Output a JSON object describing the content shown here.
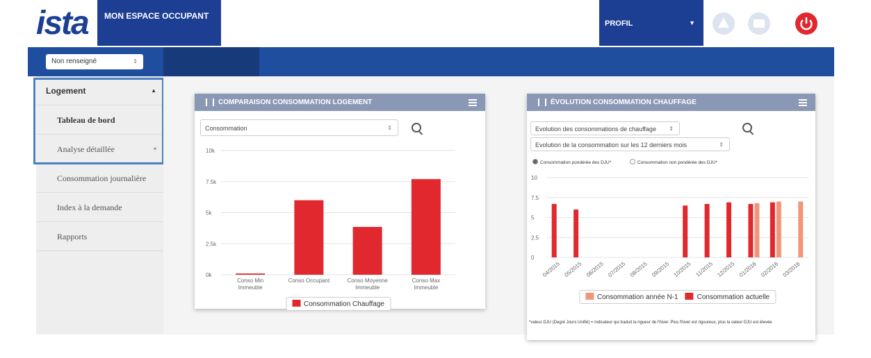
{
  "header": {
    "logo": "ista",
    "title": "MON ESPACE OCCUPANT",
    "profile": "PROFIL"
  },
  "selector": "Non renseigné",
  "sidebar": {
    "section": "Logement",
    "items": [
      "Tableau de bord",
      "Analyse détaillée",
      "Consommation journalière",
      "Index à la demande",
      "Rapports"
    ]
  },
  "chart_data": [
    {
      "type": "bar",
      "title": "COMPARAISON CONSOMMATION LOGEMENT",
      "controls": {
        "selects": [
          "Consommation"
        ]
      },
      "categories": [
        "Conso Min Immeuble",
        "Conso Occupant",
        "Conso Moyenne Immeuble",
        "Conso Max Immeuble"
      ],
      "series": [
        {
          "name": "Consommation Chauffage",
          "color": "#e0282e",
          "values": [
            100,
            6000,
            3850,
            7700
          ]
        }
      ],
      "ylim": [
        0,
        10000
      ],
      "yticks": [
        {
          "value": 0,
          "label": "0k"
        },
        {
          "value": 2500,
          "label": "2.5k"
        },
        {
          "value": 5000,
          "label": "5k"
        },
        {
          "value": 7500,
          "label": "7.5k"
        },
        {
          "value": 10000,
          "label": "10k"
        }
      ],
      "grid": true,
      "legend": "bottom"
    },
    {
      "type": "bar",
      "title": "ÉVOLUTION CONSOMMATION CHAUFFAGE",
      "controls": {
        "selects": [
          "Evolution des consommations de chauffage",
          "Evolution de la consommation sur les 12 derniers mois"
        ],
        "options": [
          "Consommation pondérée des DJU*",
          "Consommation non pondérée des DJU*"
        ]
      },
      "categories": [
        "04/2015",
        "05/2015",
        "06/2015",
        "07/2015",
        "08/2015",
        "09/2015",
        "10/2015",
        "11/2015",
        "12/2015",
        "01/2016",
        "02/2016",
        "03/2016"
      ],
      "series": [
        {
          "name": "Consommation année N-1",
          "color": "#f0967a",
          "values": [
            null,
            null,
            null,
            null,
            null,
            null,
            null,
            null,
            null,
            6.8,
            7.0,
            7.0
          ]
        },
        {
          "name": "Consommation actuelle",
          "color": "#e0282e",
          "values": [
            6.7,
            6.0,
            null,
            null,
            null,
            null,
            6.5,
            6.7,
            6.9,
            6.7,
            6.9,
            null
          ]
        }
      ],
      "ylim": [
        0,
        10
      ],
      "yticks": [
        0,
        2.5,
        5,
        7.5,
        10
      ],
      "grid": true,
      "legend": "bottom",
      "footnote": "*valeur DJU (Degré Jours Unifié) = indicateur qui traduit la rigueur de l'hiver. Plus l'hiver est rigoureux, plus la valeur DJU est élevée"
    }
  ]
}
